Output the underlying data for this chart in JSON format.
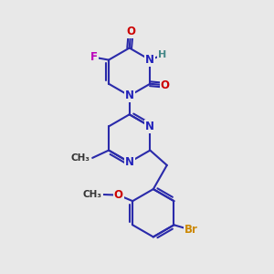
{
  "background_color": "#e8e8e8",
  "bond_color": "#2a2aaa",
  "bond_width": 1.5,
  "atom_colors": {
    "N": "#2222bb",
    "O": "#cc0000",
    "F": "#bb00bb",
    "Br": "#cc8800",
    "H": "#448888",
    "C": "#000000"
  },
  "font_size": 8.5,
  "figsize": [
    3.0,
    3.0
  ],
  "dpi": 100
}
